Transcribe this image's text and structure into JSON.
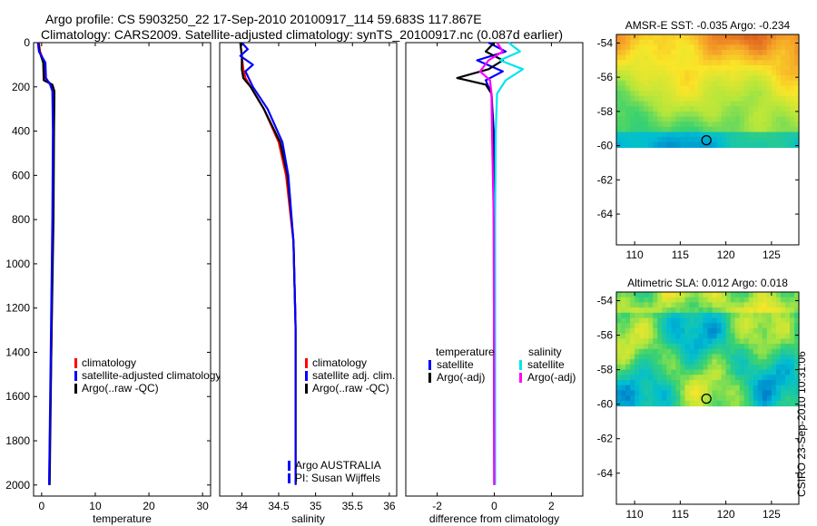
{
  "header": {
    "title_line1": "Argo profile: CS 5903250_22  17-Sep-2010 20100917_114 59.683S 117.867E",
    "title_line2": "Climatology: CARS2009. Satellite-adjusted climatology: synTS_20100917.nc (0.087d earlier)"
  },
  "side_note": "CSIRO 23-Sep-2010 10:31:06",
  "colors": {
    "climatology": "#ff0000",
    "satellite_adj": "#0000ff",
    "argo": "#000000",
    "temp_satellite": "#0000ff",
    "temp_argo": "#000000",
    "sal_satellite": "#00e5ee",
    "sal_argo": "#ff00ff"
  },
  "chart_data": [
    {
      "type": "line",
      "panel": "temperature",
      "title": "",
      "xlabel": "temperature",
      "ylabel": "",
      "xlim": [
        -1.5,
        31.5
      ],
      "ylim": [
        2050,
        0
      ],
      "xticks": [
        "0",
        "10",
        "20",
        "30"
      ],
      "xtick_values": [
        0,
        10,
        20,
        30
      ],
      "yticks": [
        "0",
        "200",
        "400",
        "600",
        "800",
        "1000",
        "1200",
        "1400",
        "1600",
        "1800",
        "2000"
      ],
      "ytick_values": [
        0,
        200,
        400,
        600,
        800,
        1000,
        1200,
        1400,
        1600,
        1800,
        2000
      ],
      "series": [
        {
          "name": "climatology",
          "color": "#ff0000",
          "x": [
            -0.5,
            -0.3,
            0.5,
            0.6,
            1.8,
            2.2,
            2.2,
            2.1,
            1.8,
            1.4
          ],
          "y": [
            0,
            40,
            90,
            160,
            190,
            220,
            400,
            800,
            1400,
            2000
          ]
        },
        {
          "name": "Argo(..raw -QC)",
          "color": "#000000",
          "x": [
            -0.6,
            -0.4,
            0.3,
            0.4,
            2.0,
            2.4,
            2.3,
            2.2,
            1.8,
            1.5
          ],
          "y": [
            0,
            40,
            90,
            170,
            190,
            220,
            400,
            800,
            1400,
            2000
          ]
        },
        {
          "name": "satellite-adjusted climatology",
          "color": "#0000ff",
          "x": [
            -0.7,
            -0.5,
            0.7,
            0.8,
            1.6,
            2.0,
            2.1,
            2.0,
            1.7,
            1.4
          ],
          "y": [
            0,
            40,
            90,
            160,
            190,
            220,
            400,
            800,
            1400,
            2000
          ]
        }
      ],
      "legend": {
        "position": "lower-center",
        "entries": [
          {
            "label": "climatology",
            "color": "#ff0000"
          },
          {
            "label": "satellite-adjusted climatology",
            "color": "#0000ff"
          },
          {
            "label": "Argo(..raw -QC)",
            "color": "#000000"
          }
        ]
      }
    },
    {
      "type": "line",
      "panel": "salinity",
      "title": "",
      "xlabel": "salinity",
      "ylabel": "",
      "xlim": [
        33.7,
        36.1
      ],
      "ylim": [
        2050,
        0
      ],
      "xticks": [
        "34",
        "34.5",
        "35",
        "35.5",
        "36"
      ],
      "xtick_values": [
        34,
        34.5,
        35,
        35.5,
        36
      ],
      "series": [
        {
          "name": "climatology",
          "color": "#ff0000",
          "x": [
            33.98,
            34.0,
            34.02,
            34.05,
            34.12,
            34.3,
            34.5,
            34.6,
            34.7,
            34.73,
            34.73
          ],
          "y": [
            0,
            60,
            120,
            160,
            200,
            300,
            450,
            600,
            900,
            1300,
            2000
          ]
        },
        {
          "name": "Argo(..raw -QC)",
          "color": "#000000",
          "x": [
            33.98,
            34.0,
            34.0,
            34.02,
            34.12,
            34.3,
            34.52,
            34.62,
            34.7,
            34.73,
            34.73
          ],
          "y": [
            0,
            60,
            120,
            160,
            200,
            300,
            450,
            600,
            900,
            1300,
            2000
          ]
        },
        {
          "name": "satellite adj. clim.",
          "color": "#0000ff",
          "x": [
            34.0,
            34.08,
            33.98,
            34.15,
            34.05,
            34.15,
            34.35,
            34.55,
            34.63,
            34.7,
            34.73,
            34.73
          ],
          "y": [
            0,
            30,
            60,
            100,
            130,
            200,
            300,
            450,
            600,
            900,
            1300,
            2000
          ]
        }
      ],
      "legend": {
        "position": "lower-center",
        "entries": [
          {
            "label": "climatology",
            "color": "#ff0000"
          },
          {
            "label": "satellite adj. clim.",
            "color": "#0000ff"
          },
          {
            "label": "Argo(..raw -QC)",
            "color": "#000000"
          }
        ]
      },
      "annotations": [
        "Argo AUSTRALIA",
        "PI: Susan Wijffels"
      ]
    },
    {
      "type": "line",
      "panel": "difference",
      "title": "",
      "xlabel": "difference from climatology",
      "ylabel": "",
      "xlim": [
        -3.1,
        3.1
      ],
      "ylim": [
        2050,
        0
      ],
      "xticks": [
        "-2",
        "0",
        "2"
      ],
      "xtick_values": [
        -2,
        0,
        2
      ],
      "series": [
        {
          "name": "temperature satellite",
          "color": "#0000ff",
          "x": [
            -0.2,
            0.4,
            -0.6,
            0.3,
            -0.3,
            -0.1,
            -0.02,
            0.0,
            0.0
          ],
          "y": [
            0,
            40,
            80,
            130,
            170,
            230,
            400,
            800,
            2000
          ]
        },
        {
          "name": "temperature Argo(-adj)",
          "color": "#000000",
          "x": [
            0.0,
            -0.3,
            0.3,
            -0.2,
            -1.3,
            -0.3,
            -0.1,
            -0.05,
            -0.02,
            0.0
          ],
          "y": [
            0,
            40,
            80,
            120,
            160,
            190,
            230,
            400,
            800,
            2000
          ]
        },
        {
          "name": "salinity satellite",
          "color": "#00e5ee",
          "x": [
            0.5,
            0.9,
            0.2,
            1.0,
            0.4,
            0.1,
            0.05,
            0.03,
            0.03
          ],
          "y": [
            0,
            40,
            80,
            120,
            170,
            230,
            400,
            800,
            2000
          ]
        },
        {
          "name": "salinity Argo(-adj)",
          "color": "#ff00ff",
          "x": [
            0.1,
            0.3,
            -0.2,
            -0.5,
            -0.15,
            -0.1,
            -0.08,
            -0.05,
            -0.02,
            0.0
          ],
          "y": [
            0,
            40,
            80,
            130,
            170,
            230,
            400,
            600,
            800,
            2000
          ]
        }
      ],
      "legend": {
        "position": "lower-center",
        "group_titles": [
          "temperature",
          "salinity"
        ],
        "entries": [
          {
            "label": "satellite",
            "color": "#0000ff",
            "group": "temperature"
          },
          {
            "label": "Argo(-adj)",
            "color": "#000000",
            "group": "temperature"
          },
          {
            "label": "satellite",
            "color": "#00e5ee",
            "group": "salinity"
          },
          {
            "label": "Argo(-adj)",
            "color": "#ff00ff",
            "group": "salinity"
          }
        ]
      }
    },
    {
      "type": "heatmap",
      "panel": "sst_map",
      "title": "AMSR-E SST: -0.035 Argo: -0.234",
      "xlabel": "",
      "ylabel": "",
      "xlim": [
        108,
        128
      ],
      "ylim": [
        -65.8,
        -53.5
      ],
      "xticks": [
        "110",
        "115",
        "120",
        "125"
      ],
      "xtick_values": [
        110,
        115,
        120,
        125
      ],
      "yticks": [
        "-54",
        "-56",
        "-58",
        "-60",
        "-62",
        "-64"
      ],
      "ytick_values": [
        -54,
        -56,
        -58,
        -60,
        -62,
        -64
      ],
      "data_lat_range": [
        -60.1,
        -53.5
      ],
      "argo_position": {
        "lon": 117.867,
        "lat": -59.683
      }
    },
    {
      "type": "heatmap",
      "panel": "sla_map",
      "title": "Altimetric SLA: 0.012 Argo: 0.018",
      "xlabel": "",
      "ylabel": "",
      "xlim": [
        108,
        128
      ],
      "ylim": [
        -65.8,
        -53.5
      ],
      "xticks": [
        "110",
        "115",
        "120",
        "125"
      ],
      "xtick_values": [
        110,
        115,
        120,
        125
      ],
      "yticks": [
        "-54",
        "-56",
        "-58",
        "-60",
        "-62",
        "-64"
      ],
      "ytick_values": [
        -54,
        -56,
        -58,
        -60,
        -62,
        -64
      ],
      "data_lat_range": [
        -60.1,
        -53.5
      ],
      "argo_position": {
        "lon": 117.867,
        "lat": -59.683
      }
    }
  ]
}
